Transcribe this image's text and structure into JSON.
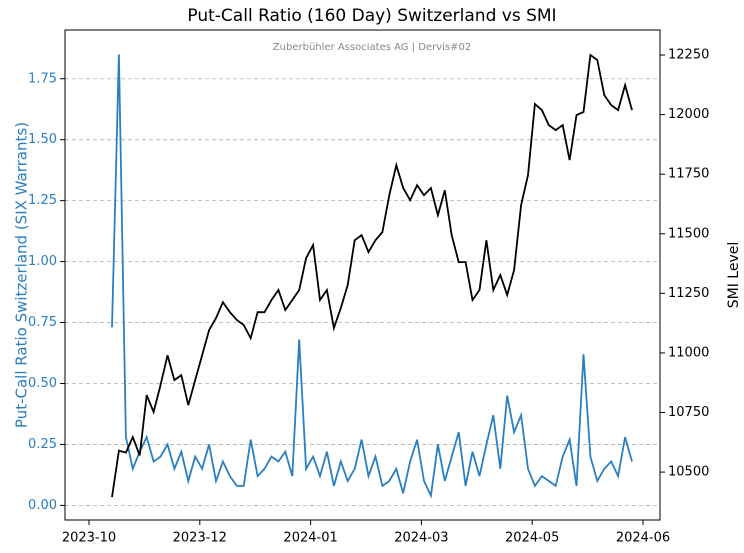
{
  "chart_data": {
    "type": "line",
    "title": "Put-Call Ratio (160 Day) Switzerland vs SMI",
    "subtitle": "Zuberbühler Associates AG | Dervis#02",
    "y_label": "Put-Call Ratio Switzerland (SIX Warrants)",
    "y2_label": "SMI Level",
    "xticks": [
      "2023-10",
      "2023-12",
      "2024-01",
      "2024-03",
      "2024-05",
      "2024-06"
    ],
    "ylim": [
      -0.06,
      1.95
    ],
    "yticks": [
      {
        "value": 0,
        "label": "0.00"
      },
      {
        "value": 0.25,
        "label": "0.25"
      },
      {
        "value": 0.5,
        "label": "0.50"
      },
      {
        "value": 0.75,
        "label": "0.75"
      },
      {
        "value": 1,
        "label": "1.00"
      },
      {
        "value": 1.25,
        "label": "1.25"
      },
      {
        "value": 1.5,
        "label": "1.50"
      },
      {
        "value": 1.75,
        "label": "1.75"
      }
    ],
    "y2lim": [
      10299,
      12355
    ],
    "y2ticks": [
      10500,
      10750,
      11000,
      11250,
      11500,
      11750,
      12000,
      12250
    ],
    "grid": true,
    "series": [
      {
        "color": "#2a7fc0",
        "values": [
          0.73,
          1.85,
          0.28,
          0.15,
          0.22,
          0.28,
          0.18,
          0.2,
          0.25,
          0.15,
          0.22,
          0.1,
          0.2,
          0.15,
          0.25,
          0.1,
          0.18,
          0.12,
          0.08,
          0.08,
          0.27,
          0.12,
          0.15,
          0.2,
          0.18,
          0.22,
          0.12,
          0.68,
          0.15,
          0.2,
          0.12,
          0.22,
          0.08,
          0.18,
          0.1,
          0.15,
          0.27,
          0.12,
          0.2,
          0.08,
          0.1,
          0.15,
          0.05,
          0.18,
          0.27,
          0.1,
          0.04,
          0.25,
          0.1,
          0.2,
          0.3,
          0.08,
          0.22,
          0.12,
          0.25,
          0.37,
          0.15,
          0.45,
          0.3,
          0.37,
          0.15,
          0.08,
          0.12,
          0.1,
          0.08,
          0.2,
          0.27,
          0.08,
          0.62,
          0.2,
          0.1,
          0.15,
          0.18,
          0.12,
          0.28,
          0.18
        ]
      },
      {
        "color": "#000000",
        "axis": "y2",
        "values": [
          10395,
          10590,
          10582,
          10647,
          10570,
          10823,
          10752,
          10865,
          10990,
          10886,
          10907,
          10781,
          10886,
          10990,
          11096,
          11146,
          11213,
          11171,
          11138,
          11117,
          11062,
          11171,
          11171,
          11222,
          11264,
          11180,
          11222,
          11264,
          11398,
          11453,
          11222,
          11264,
          11104,
          11188,
          11285,
          11473,
          11494,
          11423,
          11473,
          11507,
          11662,
          11788,
          11692,
          11641,
          11704,
          11662,
          11692,
          11578,
          11683,
          11494,
          11381,
          11381,
          11222,
          11264,
          11473,
          11264,
          11327,
          11243,
          11348,
          11620,
          11746,
          12044,
          12019,
          11956,
          11935,
          11956,
          11809,
          11998,
          12011,
          12250,
          12229,
          12082,
          12040,
          12019,
          12124,
          12019
        ]
      }
    ]
  }
}
